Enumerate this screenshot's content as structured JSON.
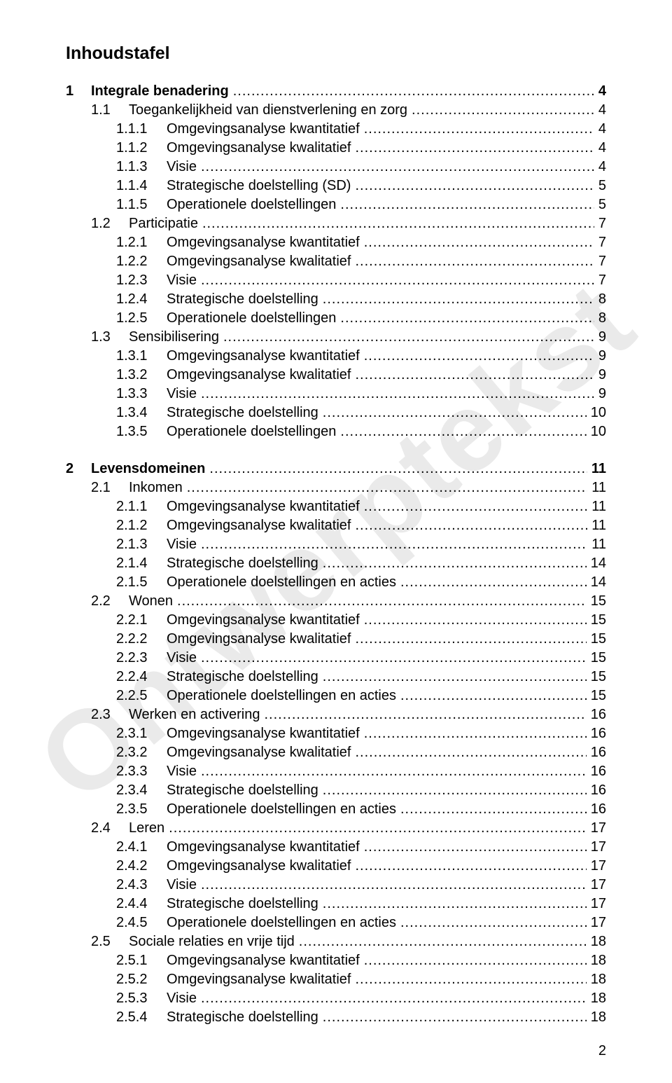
{
  "title": "Inhoudstafel",
  "watermark": "Ontwerptekst",
  "page_number": "2",
  "colors": {
    "text": "#000000",
    "background": "#ffffff",
    "watermark": "#d9d9d9"
  },
  "typography": {
    "body_fontsize_pt": 15,
    "title_fontsize_pt": 19,
    "font_family": "Arial"
  },
  "toc": [
    {
      "num": "1",
      "label": "Integrale benadering",
      "page": "4",
      "indent": 0,
      "bold": true,
      "gapBefore": false
    },
    {
      "num": "1.1",
      "label": "Toegankelijkheid van dienstverlening en zorg",
      "page": "4",
      "indent": 1,
      "bold": false,
      "gapBefore": false
    },
    {
      "num": "1.1.1",
      "label": "Omgevingsanalyse kwantitatief",
      "page": "4",
      "indent": 2,
      "bold": false,
      "gapBefore": false
    },
    {
      "num": "1.1.2",
      "label": "Omgevingsanalyse kwalitatief",
      "page": "4",
      "indent": 2,
      "bold": false,
      "gapBefore": false
    },
    {
      "num": "1.1.3",
      "label": "Visie",
      "page": "4",
      "indent": 2,
      "bold": false,
      "gapBefore": false
    },
    {
      "num": "1.1.4",
      "label": "Strategische doelstelling (SD)",
      "page": "5",
      "indent": 2,
      "bold": false,
      "gapBefore": false
    },
    {
      "num": "1.1.5",
      "label": "Operationele doelstellingen",
      "page": "5",
      "indent": 2,
      "bold": false,
      "gapBefore": false
    },
    {
      "num": "1.2",
      "label": "Participatie",
      "page": "7",
      "indent": 1,
      "bold": false,
      "gapBefore": false
    },
    {
      "num": "1.2.1",
      "label": "Omgevingsanalyse kwantitatief",
      "page": "7",
      "indent": 2,
      "bold": false,
      "gapBefore": false
    },
    {
      "num": "1.2.2",
      "label": "Omgevingsanalyse kwalitatief",
      "page": "7",
      "indent": 2,
      "bold": false,
      "gapBefore": false
    },
    {
      "num": "1.2.3",
      "label": "Visie",
      "page": "7",
      "indent": 2,
      "bold": false,
      "gapBefore": false
    },
    {
      "num": "1.2.4",
      "label": "Strategische doelstelling",
      "page": "8",
      "indent": 2,
      "bold": false,
      "gapBefore": false
    },
    {
      "num": "1.2.5",
      "label": "Operationele doelstellingen",
      "page": "8",
      "indent": 2,
      "bold": false,
      "gapBefore": false
    },
    {
      "num": "1.3",
      "label": "Sensibilisering",
      "page": "9",
      "indent": 1,
      "bold": false,
      "gapBefore": false
    },
    {
      "num": "1.3.1",
      "label": "Omgevingsanalyse kwantitatief",
      "page": "9",
      "indent": 2,
      "bold": false,
      "gapBefore": false
    },
    {
      "num": "1.3.2",
      "label": "Omgevingsanalyse kwalitatief",
      "page": "9",
      "indent": 2,
      "bold": false,
      "gapBefore": false
    },
    {
      "num": "1.3.3",
      "label": "Visie",
      "page": "9",
      "indent": 2,
      "bold": false,
      "gapBefore": false
    },
    {
      "num": "1.3.4",
      "label": "Strategische doelstelling",
      "page": "10",
      "indent": 2,
      "bold": false,
      "gapBefore": false
    },
    {
      "num": "1.3.5",
      "label": "Operationele doelstellingen",
      "page": "10",
      "indent": 2,
      "bold": false,
      "gapBefore": false
    },
    {
      "num": "2",
      "label": "Levensdomeinen",
      "page": "11",
      "indent": 0,
      "bold": true,
      "gapBefore": true
    },
    {
      "num": "2.1",
      "label": "Inkomen",
      "page": "11",
      "indent": 1,
      "bold": false,
      "gapBefore": false
    },
    {
      "num": "2.1.1",
      "label": "Omgevingsanalyse kwantitatief",
      "page": "11",
      "indent": 2,
      "bold": false,
      "gapBefore": false
    },
    {
      "num": "2.1.2",
      "label": "Omgevingsanalyse kwalitatief",
      "page": "11",
      "indent": 2,
      "bold": false,
      "gapBefore": false
    },
    {
      "num": "2.1.3",
      "label": "Visie",
      "page": "11",
      "indent": 2,
      "bold": false,
      "gapBefore": false
    },
    {
      "num": "2.1.4",
      "label": "Strategische doelstelling",
      "page": "14",
      "indent": 2,
      "bold": false,
      "gapBefore": false
    },
    {
      "num": "2.1.5",
      "label": "Operationele doelstellingen en acties",
      "page": "14",
      "indent": 2,
      "bold": false,
      "gapBefore": false
    },
    {
      "num": "2.2",
      "label": "Wonen",
      "page": "15",
      "indent": 1,
      "bold": false,
      "gapBefore": false
    },
    {
      "num": "2.2.1",
      "label": "Omgevingsanalyse kwantitatief",
      "page": "15",
      "indent": 2,
      "bold": false,
      "gapBefore": false
    },
    {
      "num": "2.2.2",
      "label": "Omgevingsanalyse kwalitatief",
      "page": "15",
      "indent": 2,
      "bold": false,
      "gapBefore": false
    },
    {
      "num": "2.2.3",
      "label": "Visie",
      "page": "15",
      "indent": 2,
      "bold": false,
      "gapBefore": false
    },
    {
      "num": "2.2.4",
      "label": "Strategische doelstelling",
      "page": "15",
      "indent": 2,
      "bold": false,
      "gapBefore": false
    },
    {
      "num": "2.2.5",
      "label": "Operationele doelstellingen en acties",
      "page": "15",
      "indent": 2,
      "bold": false,
      "gapBefore": false
    },
    {
      "num": "2.3",
      "label": "Werken en activering",
      "page": "16",
      "indent": 1,
      "bold": false,
      "gapBefore": false
    },
    {
      "num": "2.3.1",
      "label": "Omgevingsanalyse kwantitatief",
      "page": "16",
      "indent": 2,
      "bold": false,
      "gapBefore": false
    },
    {
      "num": "2.3.2",
      "label": "Omgevingsanalyse kwalitatief",
      "page": "16",
      "indent": 2,
      "bold": false,
      "gapBefore": false
    },
    {
      "num": "2.3.3",
      "label": "Visie",
      "page": "16",
      "indent": 2,
      "bold": false,
      "gapBefore": false
    },
    {
      "num": "2.3.4",
      "label": "Strategische doelstelling",
      "page": "16",
      "indent": 2,
      "bold": false,
      "gapBefore": false
    },
    {
      "num": "2.3.5",
      "label": "Operationele doelstellingen en acties",
      "page": "16",
      "indent": 2,
      "bold": false,
      "gapBefore": false
    },
    {
      "num": "2.4",
      "label": "Leren",
      "page": "17",
      "indent": 1,
      "bold": false,
      "gapBefore": false
    },
    {
      "num": "2.4.1",
      "label": "Omgevingsanalyse kwantitatief",
      "page": "17",
      "indent": 2,
      "bold": false,
      "gapBefore": false
    },
    {
      "num": "2.4.2",
      "label": "Omgevingsanalyse kwalitatief",
      "page": "17",
      "indent": 2,
      "bold": false,
      "gapBefore": false
    },
    {
      "num": "2.4.3",
      "label": "Visie",
      "page": "17",
      "indent": 2,
      "bold": false,
      "gapBefore": false
    },
    {
      "num": "2.4.4",
      "label": "Strategische doelstelling",
      "page": "17",
      "indent": 2,
      "bold": false,
      "gapBefore": false
    },
    {
      "num": "2.4.5",
      "label": "Operationele doelstellingen en acties",
      "page": "17",
      "indent": 2,
      "bold": false,
      "gapBefore": false
    },
    {
      "num": "2.5",
      "label": "Sociale relaties en vrije tijd",
      "page": "18",
      "indent": 1,
      "bold": false,
      "gapBefore": false
    },
    {
      "num": "2.5.1",
      "label": "Omgevingsanalyse kwantitatief",
      "page": "18",
      "indent": 2,
      "bold": false,
      "gapBefore": false
    },
    {
      "num": "2.5.2",
      "label": "Omgevingsanalyse kwalitatief",
      "page": "18",
      "indent": 2,
      "bold": false,
      "gapBefore": false
    },
    {
      "num": "2.5.3",
      "label": "Visie",
      "page": "18",
      "indent": 2,
      "bold": false,
      "gapBefore": false
    },
    {
      "num": "2.5.4",
      "label": "Strategische doelstelling",
      "page": "18",
      "indent": 2,
      "bold": false,
      "gapBefore": false
    }
  ]
}
